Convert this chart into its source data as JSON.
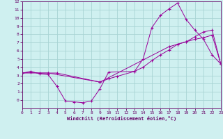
{
  "xlabel": "Windchill (Refroidissement éolien,°C)",
  "background_color": "#cff0f0",
  "grid_color": "#a8d4d4",
  "line_color": "#990099",
  "line1_x": [
    0,
    1,
    2,
    3,
    4,
    5,
    6,
    7,
    8,
    9,
    10,
    13,
    14,
    15,
    16,
    17,
    18,
    19,
    20,
    21,
    22,
    23
  ],
  "line1_y": [
    3.3,
    3.5,
    3.2,
    3.1,
    1.7,
    -0.1,
    -0.2,
    -0.3,
    -0.1,
    1.4,
    3.4,
    3.5,
    5.0,
    8.8,
    10.3,
    11.1,
    11.8,
    9.8,
    8.5,
    7.4,
    5.5,
    4.4
  ],
  "line2_x": [
    0,
    1,
    2,
    3,
    4,
    9,
    10,
    11,
    13,
    14,
    15,
    16,
    17,
    18,
    19,
    20,
    21,
    22,
    23
  ],
  "line2_y": [
    3.3,
    3.4,
    3.3,
    3.3,
    3.3,
    2.2,
    2.6,
    2.9,
    3.5,
    4.0,
    4.8,
    5.5,
    6.1,
    6.8,
    7.1,
    7.7,
    8.3,
    8.5,
    4.4
  ],
  "line3_x": [
    0,
    3,
    9,
    17,
    18,
    19,
    20,
    21,
    22,
    23
  ],
  "line3_y": [
    3.3,
    3.3,
    2.2,
    6.5,
    6.8,
    7.1,
    7.4,
    7.6,
    7.9,
    4.4
  ],
  "ylim": [
    -1,
    12
  ],
  "xlim": [
    0,
    23
  ],
  "ytick_min": 0,
  "ytick_max": 12,
  "xtick_max": 23
}
